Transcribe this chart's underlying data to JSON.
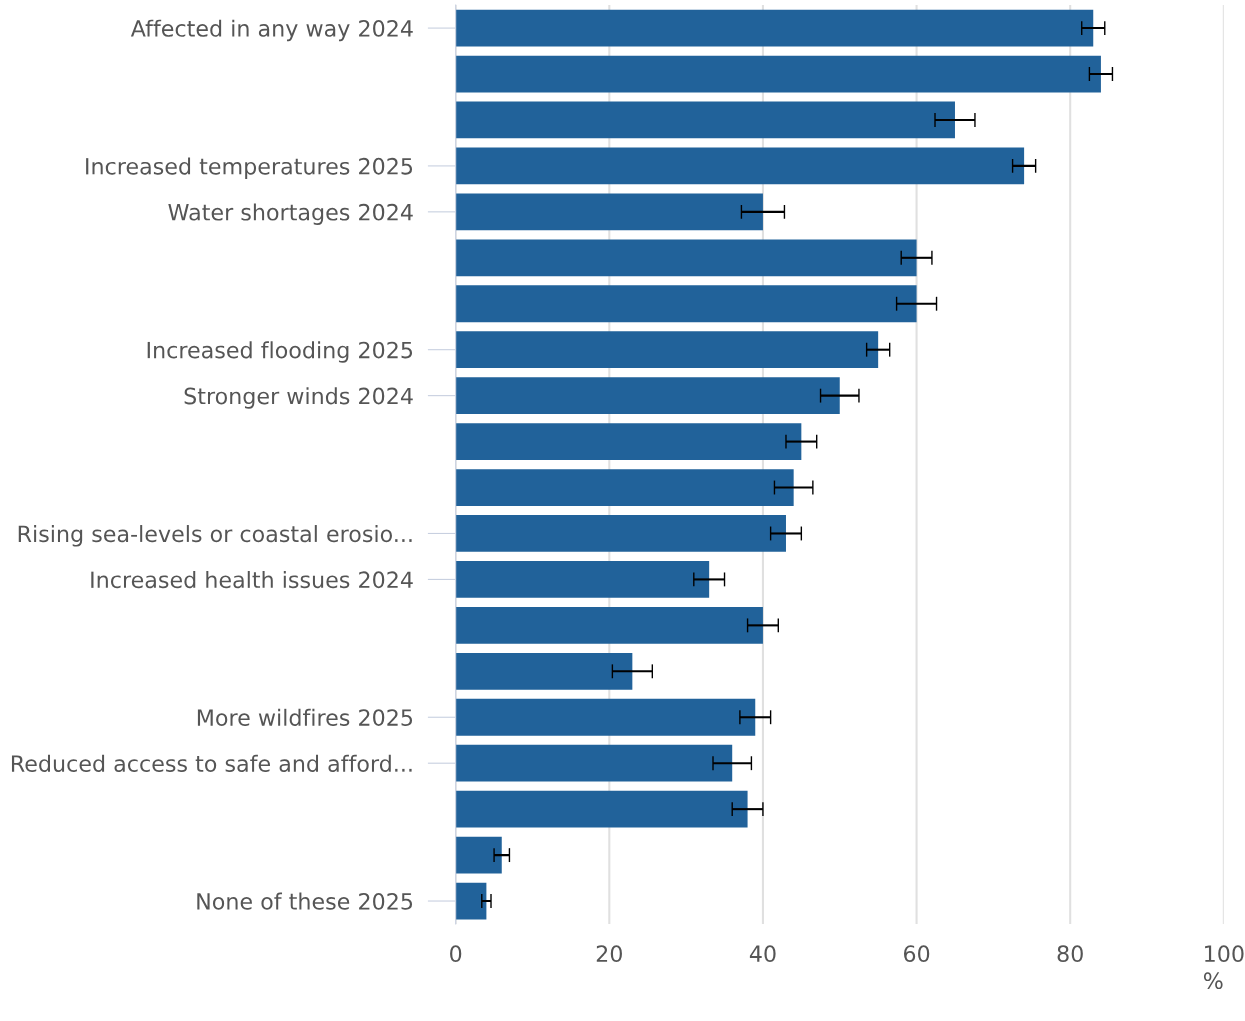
{
  "chart_data": {
    "type": "bar",
    "orientation": "horizontal",
    "xlabel": "%",
    "categories": [
      "Affected in any way 2024",
      null,
      null,
      "Increased temperatures 2025",
      "Water shortages 2024",
      null,
      null,
      "Increased flooding 2025",
      "Stronger winds 2024",
      null,
      null,
      "Rising sea-levels or coastal erosio...",
      "Increased health issues 2024",
      null,
      null,
      "More wildfires 2025",
      "Reduced access to safe and afford...",
      null,
      null,
      "None of these 2025"
    ],
    "values": [
      83,
      84,
      65,
      74,
      40,
      60,
      60,
      55,
      50,
      45,
      44,
      43,
      33,
      40,
      23,
      39,
      36,
      38,
      6,
      4
    ],
    "errors": [
      1.5,
      1.5,
      2.6,
      1.5,
      2.8,
      2,
      2.6,
      1.5,
      2.5,
      2,
      2.5,
      2,
      2,
      2,
      2.6,
      2,
      2.5,
      2,
      1,
      0.6
    ],
    "color": "#21629a",
    "xlim": [
      0,
      100
    ],
    "xticks": [
      0,
      20,
      40,
      60,
      80,
      100
    ],
    "grid": "x"
  }
}
